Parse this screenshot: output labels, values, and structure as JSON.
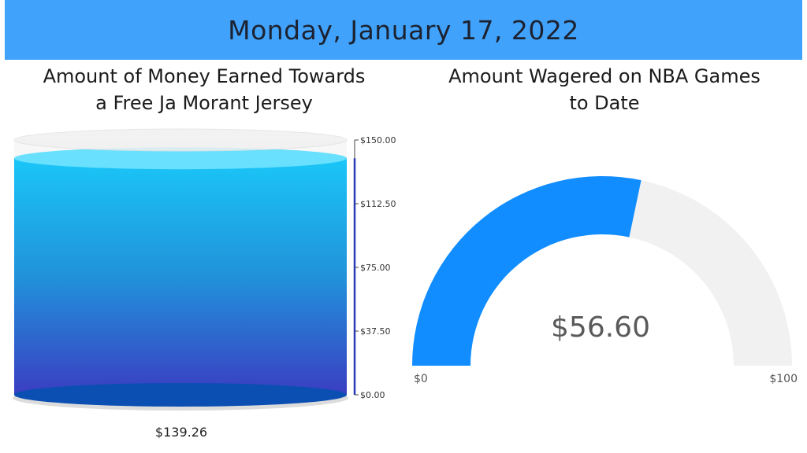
{
  "header": {
    "date": "Monday, January 17, 2022",
    "background": "#41a2fb"
  },
  "left_panel": {
    "title_line1": "Amount of Money Earned Towards",
    "title_line2": "a Free Ja Morant Jersey",
    "value_label": "$139.26",
    "ticks": [
      "$150.00",
      "$112.50",
      "$75.00",
      "$37.50",
      "$0.00"
    ]
  },
  "right_panel": {
    "title_line1": "Amount Wagered on NBA Games",
    "title_line2": "to Date",
    "value_label": "$56.60",
    "min_label": "$0",
    "max_label": "$100",
    "fill_color": "#118dff",
    "track_color": "#f1f1f1"
  },
  "chart_data": [
    {
      "type": "tank",
      "title": "Amount of Money Earned Towards a Free Ja Morant Jersey",
      "value": 139.26,
      "min": 0,
      "max": 150,
      "ticks": [
        0,
        37.5,
        75,
        112.5,
        150
      ]
    },
    {
      "type": "gauge",
      "title": "Amount Wagered on NBA Games to Date",
      "value": 56.6,
      "min": 0,
      "max": 100
    }
  ]
}
